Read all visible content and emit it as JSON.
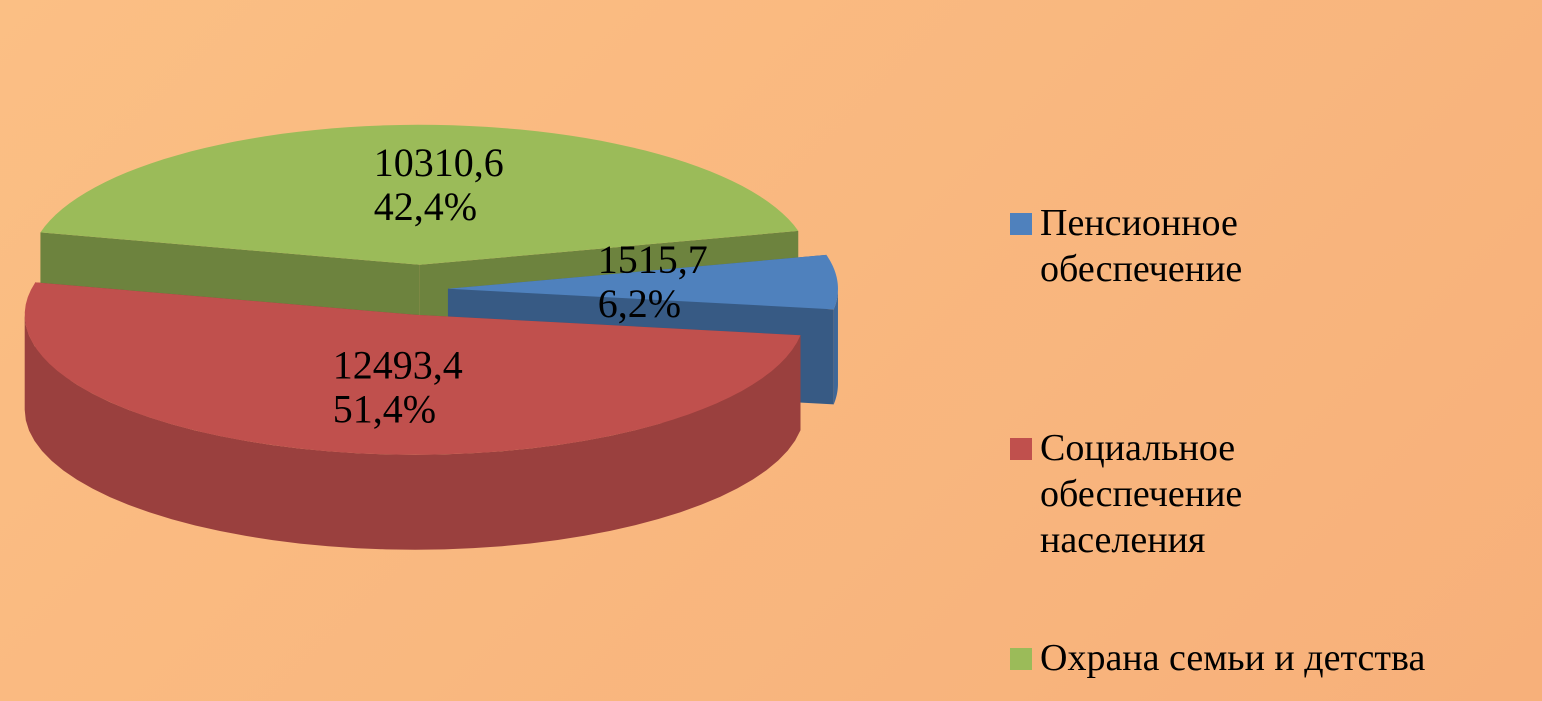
{
  "chart_data": {
    "type": "pie3d",
    "categories": [
      "Пенсионное обеспечение",
      "Социальное обеспечение населения",
      "Охрана семьи и детства"
    ],
    "values": [
      1515.7,
      12493.4,
      10310.6
    ],
    "value_labels": [
      "1515,7",
      "12493,4",
      "10310,6"
    ],
    "percents": [
      6.2,
      51.4,
      42.4
    ],
    "percent_labels": [
      "6,2%",
      "51,4%",
      "42,4%"
    ],
    "colors": [
      "#4f81bd",
      "#c0504d",
      "#9bbb59"
    ],
    "legend": "right"
  }
}
